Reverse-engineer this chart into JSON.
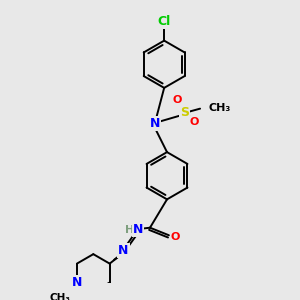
{
  "bg_color": "#e8e8e8",
  "atom_colors": {
    "C": "#000000",
    "N": "#0000ff",
    "O": "#ff0000",
    "S": "#cccc00",
    "Cl": "#00cc00",
    "H": "#7f9f7f"
  },
  "bond_color": "#000000",
  "bond_lw": 1.4,
  "ring_r": 25,
  "figsize": [
    3.0,
    3.0
  ],
  "dpi": 100
}
